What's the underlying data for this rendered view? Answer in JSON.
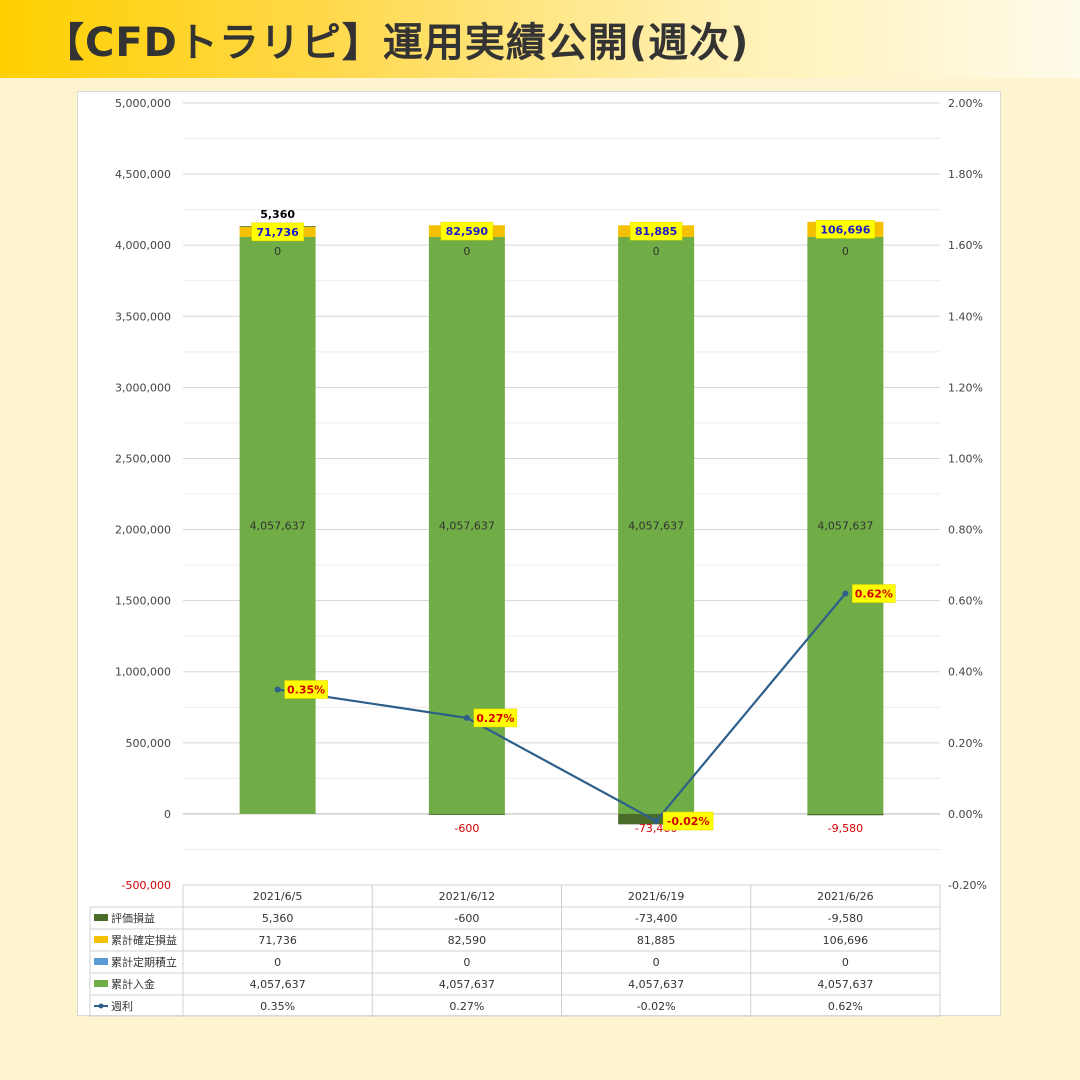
{
  "title": "【CFDトラリピ】運用実績公開(週次)",
  "chart_data": {
    "type": "bar",
    "stacked": true,
    "categories": [
      "2021/6/5",
      "2021/6/12",
      "2021/6/19",
      "2021/6/26"
    ],
    "y_left": {
      "min": -500000,
      "max": 5000000,
      "step": 500000,
      "tick_labels": [
        "-500,000",
        "0",
        "500,000",
        "1,000,000",
        "1,500,000",
        "2,000,000",
        "2,500,000",
        "3,000,000",
        "3,500,000",
        "4,000,000",
        "4,500,000",
        "5,000,000"
      ]
    },
    "y_right": {
      "min": -0.2,
      "max": 2.0,
      "step": 0.2,
      "tick_labels": [
        "-0.20%",
        "0.00%",
        "0.20%",
        "0.40%",
        "0.60%",
        "0.80%",
        "1.00%",
        "1.20%",
        "1.40%",
        "1.60%",
        "1.80%",
        "2.00%"
      ]
    },
    "series": [
      {
        "name": "評価損益",
        "type": "bar",
        "color": "#4a6b2a",
        "values": [
          5360,
          -600,
          -73400,
          -9580
        ],
        "labels": [
          "5,360",
          "-600",
          "-73,400",
          "-9,580"
        ]
      },
      {
        "name": "累計確定損益",
        "type": "bar",
        "color": "#f5c000",
        "values": [
          71736,
          82590,
          81885,
          106696
        ],
        "labels": [
          "71,736",
          "82,590",
          "81,885",
          "106,696"
        ]
      },
      {
        "name": "累計定期積立",
        "type": "bar",
        "color": "#5b9bd5",
        "values": [
          0,
          0,
          0,
          0
        ],
        "labels": [
          "0",
          "0",
          "0",
          "0"
        ]
      },
      {
        "name": "累計入金",
        "type": "bar",
        "color": "#70ad47",
        "values": [
          4057637,
          4057637,
          4057637,
          4057637
        ],
        "labels": [
          "4,057,637",
          "4,057,637",
          "4,057,637",
          "4,057,637"
        ]
      },
      {
        "name": "週利",
        "type": "line",
        "axis": "right",
        "color": "#2e5f8a",
        "values": [
          0.35,
          0.27,
          -0.02,
          0.62
        ],
        "labels": [
          "0.35%",
          "0.27%",
          "-0.02%",
          "0.62%"
        ]
      }
    ],
    "grid": true,
    "legend": "data-table"
  }
}
